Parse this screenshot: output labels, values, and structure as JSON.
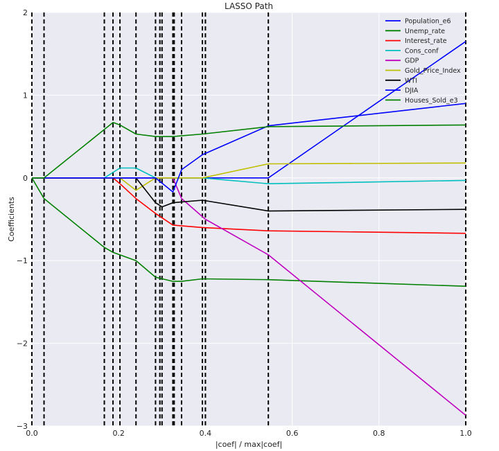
{
  "chart_data": {
    "type": "line",
    "title": "LASSO Path",
    "xlabel": "|coef| / max|coef|",
    "ylabel": "Coefficients",
    "xlim": [
      0.0,
      1.0
    ],
    "ylim": [
      -3,
      2
    ],
    "xticks": [
      0.0,
      0.2,
      0.4,
      0.6,
      0.8,
      1.0
    ],
    "xtick_labels": [
      "0.0",
      "0.2",
      "0.4",
      "0.6",
      "0.8",
      "1.0"
    ],
    "yticks": [
      -3,
      -2,
      -1,
      0,
      1,
      2
    ],
    "ytick_labels": [
      "−3",
      "−2",
      "−1",
      "0",
      "1",
      "2"
    ],
    "grid": true,
    "legend_position": "top-right",
    "background": "#eaeaf2",
    "alphas_vlines": [
      0.0,
      0.028,
      0.167,
      0.187,
      0.203,
      0.24,
      0.285,
      0.295,
      0.3,
      0.325,
      0.328,
      0.345,
      0.393,
      0.4,
      0.545,
      1.0
    ],
    "series": [
      {
        "name": "Population_e6",
        "color": "#0000ff",
        "x": [
          0.0,
          0.325,
          0.328,
          0.545,
          1.0
        ],
        "y": [
          0.0,
          0.0,
          0.0,
          0.0,
          1.65
        ]
      },
      {
        "name": "Unemp_rate",
        "color": "#008000",
        "x": [
          0.0,
          0.028,
          0.167,
          0.187,
          0.24,
          0.285,
          0.325,
          0.345,
          0.393,
          0.545,
          1.0
        ],
        "y": [
          0.0,
          -0.25,
          -0.84,
          -0.9,
          -1.0,
          -1.2,
          -1.25,
          -1.25,
          -1.22,
          -1.23,
          -1.31
        ]
      },
      {
        "name": "Interest_rate",
        "color": "#ff0000",
        "x": [
          0.0,
          0.187,
          0.203,
          0.24,
          0.285,
          0.325,
          0.393,
          0.545,
          1.0
        ],
        "y": [
          0.0,
          0.0,
          -0.07,
          -0.25,
          -0.43,
          -0.57,
          -0.6,
          -0.64,
          -0.67
        ]
      },
      {
        "name": "Cons_conf",
        "color": "#00bfbf",
        "x": [
          0.0,
          0.167,
          0.203,
          0.24,
          0.285,
          0.3,
          0.325,
          0.393,
          0.545,
          1.0
        ],
        "y": [
          0.0,
          0.0,
          0.12,
          0.12,
          0.0,
          0.0,
          0.0,
          0.0,
          -0.07,
          -0.03
        ]
      },
      {
        "name": "GDP",
        "color": "#bf00bf",
        "x": [
          0.0,
          0.325,
          0.345,
          0.4,
          0.545,
          1.0
        ],
        "y": [
          0.0,
          0.0,
          -0.25,
          -0.5,
          -0.93,
          -2.87
        ]
      },
      {
        "name": "Gold_Price_Index",
        "color": "#bfbf00",
        "x": [
          0.0,
          0.203,
          0.24,
          0.285,
          0.393,
          0.545,
          1.0
        ],
        "y": [
          0.0,
          0.0,
          -0.15,
          0.0,
          0.0,
          0.17,
          0.18
        ]
      },
      {
        "name": "WTI",
        "color": "#000000",
        "x": [
          0.0,
          0.24,
          0.285,
          0.3,
          0.325,
          0.393,
          0.545,
          1.0
        ],
        "y": [
          0.0,
          0.0,
          -0.3,
          -0.35,
          -0.3,
          -0.27,
          -0.4,
          -0.38
        ]
      },
      {
        "name": "DJIA",
        "color": "#0000ff",
        "x": [
          0.0,
          0.285,
          0.325,
          0.345,
          0.393,
          0.545,
          1.0
        ],
        "y": [
          0.0,
          0.0,
          -0.17,
          0.1,
          0.28,
          0.63,
          0.9
        ]
      },
      {
        "name": "Houses_Sold_e3",
        "color": "#008000",
        "x": [
          0.0,
          0.028,
          0.187,
          0.203,
          0.24,
          0.285,
          0.325,
          0.393,
          0.545,
          1.0
        ],
        "y": [
          0.0,
          0.0,
          0.67,
          0.64,
          0.53,
          0.5,
          0.5,
          0.53,
          0.62,
          0.64
        ]
      }
    ]
  }
}
